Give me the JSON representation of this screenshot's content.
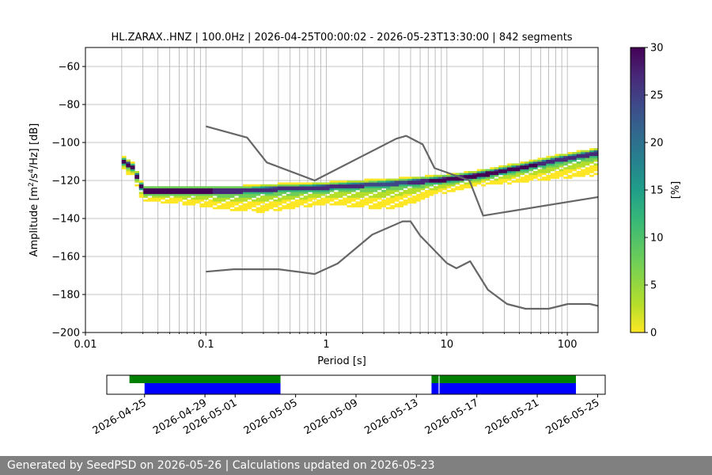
{
  "chart_data": [
    {
      "type": "heatmap",
      "title": "HL.ZARAX..HNZ | 100.0Hz | 2026-04-25T00:00:02 - 2026-05-23T13:30:00 | 842 segments",
      "xlabel": "Period [s]",
      "ylabel_prefix": "Amplitude [m",
      "ylabel_unit_parts": [
        "2",
        "/s",
        "4",
        "/Hz] [dB]"
      ],
      "x_scale": "log",
      "xlim": [
        0.01,
        180
      ],
      "ylim": [
        -200,
        -50
      ],
      "x_ticks": [
        {
          "value": 0.01,
          "label": "0.01"
        },
        {
          "value": 0.1,
          "label": "0.1"
        },
        {
          "value": 1,
          "label": "1"
        },
        {
          "value": 10,
          "label": "10"
        },
        {
          "value": 100,
          "label": "100"
        }
      ],
      "y_ticks": [
        -60,
        -80,
        -100,
        -120,
        -140,
        -160,
        -180,
        -200
      ],
      "grid": true,
      "colorbar": {
        "label": "[%]",
        "range": [
          0,
          30
        ],
        "ticks": [
          0,
          5,
          10,
          15,
          20,
          25,
          30
        ],
        "colormap": "viridis_r"
      },
      "mode_curve": [
        [
          0.02,
          -110
        ],
        [
          0.025,
          -114
        ],
        [
          0.03,
          -126
        ],
        [
          0.05,
          -126
        ],
        [
          0.1,
          -126
        ],
        [
          0.2,
          -126
        ],
        [
          0.4,
          -125
        ],
        [
          0.8,
          -124.5
        ],
        [
          1.5,
          -123.5
        ],
        [
          3,
          -122.5
        ],
        [
          5,
          -121.5
        ],
        [
          8,
          -120.5
        ],
        [
          12,
          -119.5
        ],
        [
          20,
          -117.5
        ],
        [
          40,
          -114
        ],
        [
          80,
          -110
        ],
        [
          180,
          -106
        ]
      ],
      "mode_band_spread_db": [
        [
          0.02,
          3
        ],
        [
          0.03,
          4
        ],
        [
          0.06,
          5
        ],
        [
          0.15,
          8
        ],
        [
          0.3,
          10
        ],
        [
          0.5,
          9
        ],
        [
          1,
          7
        ],
        [
          2,
          10
        ],
        [
          3.5,
          12
        ],
        [
          6,
          8
        ],
        [
          10,
          5
        ],
        [
          20,
          4
        ],
        [
          40,
          6
        ],
        [
          80,
          8
        ],
        [
          180,
          10
        ]
      ],
      "reference_models": [
        {
          "points": [
            [
              0.1,
              -91.5
            ],
            [
              0.22,
              -97.4
            ],
            [
              0.32,
              -110.5
            ],
            [
              0.8,
              -120.0
            ],
            [
              3.8,
              -98.0
            ],
            [
              4.6,
              -96.5
            ],
            [
              6.3,
              -101.0
            ],
            [
              7.9,
              -113.5
            ],
            [
              15.4,
              -120.0
            ],
            [
              20.0,
              -138.5
            ],
            [
              180,
              -128.7
            ]
          ]
        },
        {
          "points": [
            [
              0.1,
              -168.0
            ],
            [
              0.17,
              -166.7
            ],
            [
              0.4,
              -166.7
            ],
            [
              0.8,
              -169.2
            ],
            [
              1.24,
              -163.7
            ],
            [
              2.4,
              -148.5
            ],
            [
              4.3,
              -141.5
            ],
            [
              5.0,
              -141.5
            ],
            [
              6.0,
              -149.0
            ],
            [
              10.0,
              -163.5
            ],
            [
              12.0,
              -166.2
            ],
            [
              15.6,
              -162.5
            ],
            [
              21.9,
              -177.5
            ],
            [
              31.6,
              -185.0
            ],
            [
              45,
              -187.5
            ],
            [
              70,
              -187.5
            ],
            [
              101,
              -185.0
            ],
            [
              154,
              -185.0
            ],
            [
              180,
              -186.0
            ]
          ]
        }
      ]
    },
    {
      "type": "bar",
      "title": "",
      "x_ticks": [
        "2026-04-25",
        "2026-04-29",
        "2026-05-01",
        "2026-05-05",
        "2026-05-09",
        "2026-05-13",
        "2026-05-17",
        "2026-05-21",
        "2026-05-25"
      ],
      "series": [
        {
          "color": "#008000",
          "spans": [
            [
              "2026-04-24T00:00",
              "2026-05-04T00:00"
            ],
            [
              "2026-05-14T00:00",
              "2026-05-23T13:30"
            ]
          ]
        },
        {
          "color": "#0000ff",
          "spans": [
            [
              "2026-04-25T00:00",
              "2026-05-04T00:00"
            ],
            [
              "2026-05-14T00:00",
              "2026-05-23T13:30"
            ]
          ]
        }
      ]
    }
  ],
  "footer": {
    "text": "Generated by SeedPSD on 2026-05-26 | Calculations updated on 2026-05-23"
  }
}
